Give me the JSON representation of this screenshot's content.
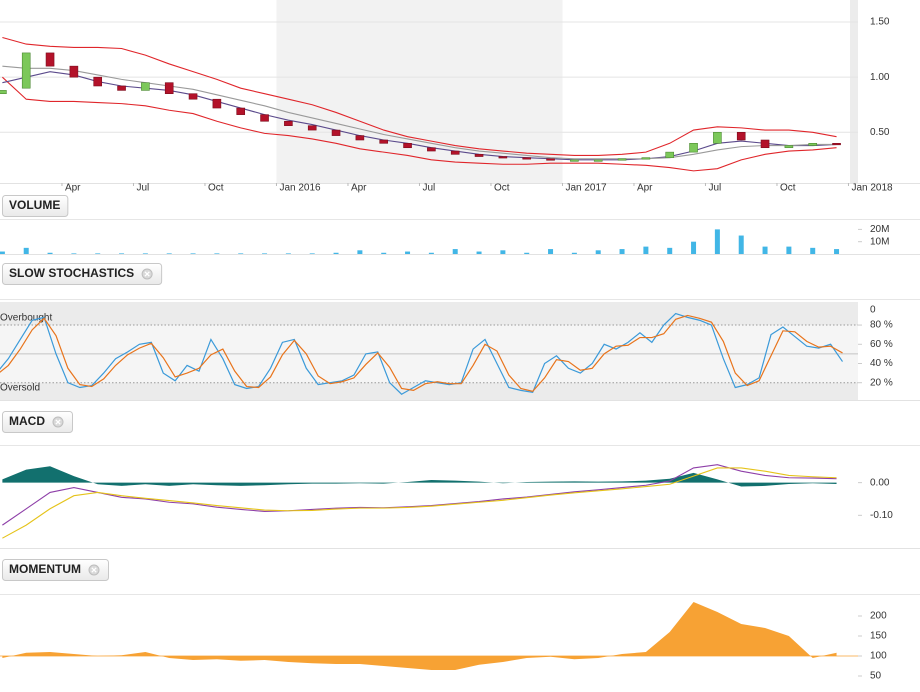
{
  "chart_data": [
    {
      "type": "candlestick",
      "xlim": [
        0.4,
        36.4
      ],
      "x": [
        0.5,
        1.5,
        2.5,
        3.5,
        4.5,
        5.5,
        6.5,
        7.5,
        8.5,
        9.5,
        10.5,
        11.5,
        12.5,
        13.5,
        14.5,
        15.5,
        16.5,
        17.5,
        18.5,
        19.5,
        20.5,
        21.5,
        22.5,
        23.5,
        24.5,
        25.5,
        26.5,
        27.5,
        28.5,
        29.5,
        30.5,
        31.5,
        32.5,
        33.5,
        34.5,
        35.5
      ],
      "xticks": [
        {
          "value": 3,
          "label": "Apr"
        },
        {
          "value": 6,
          "label": "Jul"
        },
        {
          "value": 9,
          "label": "Oct"
        },
        {
          "value": 12,
          "label": "Jan 2016"
        },
        {
          "value": 15,
          "label": "Apr"
        },
        {
          "value": 18,
          "label": "Jul"
        },
        {
          "value": 21,
          "label": "Oct"
        },
        {
          "value": 24,
          "label": "Jan 2017"
        },
        {
          "value": 27,
          "label": "Apr"
        },
        {
          "value": 30,
          "label": "Jul"
        },
        {
          "value": 33,
          "label": "Oct"
        },
        {
          "value": 36,
          "label": "Jan 2018"
        }
      ],
      "ylim": [
        0.04,
        1.7
      ],
      "yticks": [
        {
          "value": 0.5,
          "label": "0.50"
        },
        {
          "value": 1,
          "label": "1.00"
        },
        {
          "value": 1.5,
          "label": "1.50"
        }
      ],
      "grid": true,
      "open": [
        0.85,
        0.9,
        1.22,
        1.1,
        1.0,
        0.92,
        0.88,
        0.95,
        0.85,
        0.8,
        0.72,
        0.66,
        0.6,
        0.56,
        0.52,
        0.47,
        0.43,
        0.4,
        0.36,
        0.33,
        0.3,
        0.28,
        0.27,
        0.26,
        0.25,
        0.25,
        0.25,
        0.26,
        0.27,
        0.32,
        0.4,
        0.5,
        0.43,
        0.36,
        0.38,
        0.4
      ],
      "close": [
        0.88,
        1.22,
        1.1,
        1.0,
        0.92,
        0.88,
        0.95,
        0.85,
        0.8,
        0.72,
        0.66,
        0.6,
        0.56,
        0.52,
        0.47,
        0.43,
        0.4,
        0.36,
        0.33,
        0.3,
        0.28,
        0.27,
        0.26,
        0.25,
        0.25,
        0.25,
        0.26,
        0.27,
        0.32,
        0.4,
        0.5,
        0.43,
        0.36,
        0.38,
        0.4,
        0.39
      ],
      "up_color": "#7cc85a",
      "down_color": "#b3122a",
      "series": [
        {
          "color": "#e0262b",
          "values": [
            1.36,
            1.3,
            1.28,
            1.27,
            1.27,
            1.26,
            1.2,
            1.12,
            1.05,
            0.98,
            0.9,
            0.85,
            0.8,
            0.75,
            0.68,
            0.6,
            0.52,
            0.46,
            0.42,
            0.38,
            0.35,
            0.33,
            0.31,
            0.3,
            0.29,
            0.29,
            0.3,
            0.32,
            0.4,
            0.52,
            0.55,
            0.54,
            0.52,
            0.52,
            0.5,
            0.46
          ]
        },
        {
          "color": "#e0262b",
          "values": [
            1.0,
            0.8,
            0.78,
            0.78,
            0.77,
            0.76,
            0.74,
            0.7,
            0.67,
            0.6,
            0.54,
            0.49,
            0.47,
            0.44,
            0.4,
            0.35,
            0.32,
            0.29,
            0.25,
            0.23,
            0.22,
            0.21,
            0.21,
            0.22,
            0.22,
            0.22,
            0.21,
            0.2,
            0.18,
            0.15,
            0.17,
            0.25,
            0.3,
            0.33,
            0.34,
            0.36
          ]
        },
        {
          "color": "#5b4a8c",
          "values": [
            0.95,
            1.0,
            1.05,
            1.02,
            0.96,
            0.92,
            0.9,
            0.88,
            0.84,
            0.78,
            0.72,
            0.66,
            0.61,
            0.57,
            0.52,
            0.47,
            0.43,
            0.4,
            0.36,
            0.33,
            0.3,
            0.28,
            0.27,
            0.26,
            0.25,
            0.25,
            0.25,
            0.26,
            0.28,
            0.33,
            0.4,
            0.42,
            0.4,
            0.38,
            0.38,
            0.39
          ]
        },
        {
          "color": "#9a9a9a",
          "values": [
            1.1,
            1.08,
            1.08,
            1.06,
            1.02,
            0.98,
            0.95,
            0.92,
            0.89,
            0.84,
            0.79,
            0.74,
            0.68,
            0.63,
            0.58,
            0.53,
            0.48,
            0.44,
            0.4,
            0.36,
            0.33,
            0.31,
            0.29,
            0.27,
            0.26,
            0.26,
            0.26,
            0.26,
            0.27,
            0.3,
            0.34,
            0.37,
            0.38,
            0.38,
            0.39,
            0.39
          ]
        }
      ]
    },
    {
      "type": "bar",
      "title": "VOLUME",
      "xlim": [
        0.4,
        36.4
      ],
      "x": [
        0.5,
        1.5,
        2.5,
        3.5,
        4.5,
        5.5,
        6.5,
        7.5,
        8.5,
        9.5,
        10.5,
        11.5,
        12.5,
        13.5,
        14.5,
        15.5,
        16.5,
        17.5,
        18.5,
        19.5,
        20.5,
        21.5,
        22.5,
        23.5,
        24.5,
        25.5,
        26.5,
        27.5,
        28.5,
        29.5,
        30.5,
        31.5,
        32.5,
        33.5,
        34.5,
        35.5
      ],
      "ylim": [
        0,
        26000000
      ],
      "yticks": [
        {
          "value": 10000000,
          "label": "10M"
        },
        {
          "value": 20000000,
          "label": "20M"
        }
      ],
      "color": "#41b6e6",
      "values": [
        2000000,
        5000000,
        1000000,
        500000,
        500000,
        500000,
        500000,
        500000,
        500000,
        500000,
        500000,
        500000,
        500000,
        500000,
        1000000,
        3000000,
        1000000,
        2000000,
        1000000,
        4000000,
        2000000,
        3000000,
        1000000,
        4000000,
        1000000,
        3000000,
        4000000,
        6000000,
        5000000,
        10000000,
        20000000,
        15000000,
        6000000,
        6000000,
        5000000,
        4000000
      ]
    },
    {
      "type": "line",
      "title": "SLOW STOCHASTICS",
      "xlim": [
        0.4,
        36.4
      ],
      "x": [
        0.25,
        0.75,
        1.25,
        1.75,
        2.25,
        2.75,
        3.25,
        3.75,
        4.25,
        4.75,
        5.25,
        5.75,
        6.25,
        6.75,
        7.25,
        7.75,
        8.25,
        8.75,
        9.25,
        9.75,
        10.25,
        10.75,
        11.25,
        11.75,
        12.25,
        12.75,
        13.25,
        13.75,
        14.25,
        14.75,
        15.25,
        15.75,
        16.25,
        16.75,
        17.25,
        17.75,
        18.25,
        18.75,
        19.25,
        19.75,
        20.25,
        20.75,
        21.25,
        21.75,
        22.25,
        22.75,
        23.25,
        23.75,
        24.25,
        24.75,
        25.25,
        25.75,
        26.25,
        26.75,
        27.25,
        27.75,
        28.25,
        28.75,
        29.25,
        29.75,
        30.25,
        30.75,
        31.25,
        31.75,
        32.25,
        32.75,
        33.25,
        33.75,
        34.25,
        34.75,
        35.25,
        35.75
      ],
      "ylim": [
        2,
        104
      ],
      "yticks": [
        {
          "value": 20,
          "label": "20 %"
        },
        {
          "value": 40,
          "label": "40 %"
        },
        {
          "value": 60,
          "label": "60 %"
        },
        {
          "value": 80,
          "label": "80 %"
        }
      ],
      "top_label": "0",
      "midline": 50,
      "levels": [
        {
          "value": 80,
          "label": "Overbought"
        },
        {
          "value": 20,
          "label": "Oversold"
        }
      ],
      "series": [
        {
          "color": "#3b9ad9",
          "values": [
            30,
            45,
            65,
            85,
            88,
            50,
            20,
            15,
            17,
            30,
            45,
            52,
            60,
            62,
            30,
            22,
            38,
            32,
            65,
            45,
            18,
            14,
            16,
            35,
            62,
            65,
            35,
            18,
            20,
            22,
            28,
            50,
            52,
            20,
            8,
            15,
            22,
            20,
            18,
            20,
            55,
            65,
            40,
            15,
            12,
            10,
            40,
            48,
            35,
            30,
            40,
            60,
            55,
            62,
            72,
            62,
            80,
            92,
            88,
            85,
            80,
            45,
            15,
            18,
            25,
            70,
            78,
            68,
            58,
            56,
            60,
            42
          ]
        },
        {
          "color": "#e8741c",
          "values": [
            28,
            38,
            55,
            75,
            87,
            69,
            35,
            18,
            16,
            24,
            38,
            49,
            56,
            61,
            46,
            26,
            30,
            35,
            49,
            55,
            32,
            16,
            15,
            26,
            49,
            64,
            50,
            27,
            19,
            21,
            25,
            39,
            51,
            36,
            14,
            12,
            19,
            21,
            19,
            19,
            38,
            60,
            53,
            28,
            14,
            11,
            25,
            44,
            42,
            33,
            35,
            50,
            58,
            59,
            67,
            67,
            71,
            86,
            90,
            87,
            83,
            63,
            30,
            17,
            22,
            48,
            74,
            73,
            63,
            57,
            58,
            51
          ]
        }
      ]
    },
    {
      "type": "macd",
      "title": "MACD",
      "xlim": [
        0.4,
        36.4
      ],
      "x": [
        0.5,
        1.5,
        2.5,
        3.5,
        4.5,
        5.5,
        6.5,
        7.5,
        8.5,
        9.5,
        10.5,
        11.5,
        12.5,
        13.5,
        14.5,
        15.5,
        16.5,
        17.5,
        18.5,
        19.5,
        20.5,
        21.5,
        22.5,
        23.5,
        24.5,
        25.5,
        26.5,
        27.5,
        28.5,
        29.5,
        30.5,
        31.5,
        32.5,
        33.5,
        34.5,
        35.5
      ],
      "ylim": [
        -0.2,
        0.106
      ],
      "yticks": [
        {
          "value": -0.1,
          "label": "-0.10"
        },
        {
          "value": 0,
          "label": "0.00"
        }
      ],
      "histogram": {
        "color": "#12706e",
        "values": [
          0.01,
          0.04,
          0.05,
          0.02,
          -0.005,
          -0.01,
          -0.005,
          -0.01,
          -0.005,
          -0.008,
          -0.01,
          -0.008,
          -0.005,
          -0.003,
          -0.003,
          -0.002,
          -0.003,
          0.002,
          0.008,
          0.006,
          0.003,
          -0.002,
          0.002,
          0.003,
          0.004,
          0.003,
          0.004,
          0.006,
          0.012,
          0.03,
          0.01,
          -0.012,
          -0.01,
          -0.004,
          -0.002,
          -0.004
        ]
      },
      "series": [
        {
          "color": "#8e3fa8",
          "values": [
            -0.13,
            -0.08,
            -0.03,
            -0.015,
            -0.03,
            -0.045,
            -0.05,
            -0.06,
            -0.065,
            -0.075,
            -0.082,
            -0.088,
            -0.086,
            -0.082,
            -0.078,
            -0.076,
            -0.077,
            -0.074,
            -0.07,
            -0.064,
            -0.058,
            -0.05,
            -0.044,
            -0.036,
            -0.028,
            -0.022,
            -0.015,
            -0.008,
            0.005,
            0.045,
            0.055,
            0.035,
            0.022,
            0.015,
            0.014,
            0.012
          ]
        },
        {
          "color": "#e5c31a",
          "values": [
            -0.17,
            -0.13,
            -0.08,
            -0.04,
            -0.03,
            -0.04,
            -0.048,
            -0.055,
            -0.062,
            -0.07,
            -0.077,
            -0.084,
            -0.086,
            -0.085,
            -0.081,
            -0.078,
            -0.078,
            -0.076,
            -0.072,
            -0.066,
            -0.06,
            -0.054,
            -0.046,
            -0.038,
            -0.031,
            -0.025,
            -0.019,
            -0.012,
            -0.005,
            0.02,
            0.045,
            0.045,
            0.035,
            0.022,
            0.018,
            0.015
          ]
        }
      ]
    },
    {
      "type": "area",
      "title": "MOMENTUM",
      "xlim": [
        0.4,
        36.4
      ],
      "x": [
        0.5,
        1.5,
        2.5,
        3.5,
        4.5,
        5.5,
        6.5,
        7.5,
        8.5,
        9.5,
        10.5,
        11.5,
        12.5,
        13.5,
        14.5,
        15.5,
        16.5,
        17.5,
        18.5,
        19.5,
        20.5,
        21.5,
        22.5,
        23.5,
        24.5,
        25.5,
        26.5,
        27.5,
        28.5,
        29.5,
        30.5,
        31.5,
        32.5,
        33.5,
        34.5,
        35.5
      ],
      "ylim": [
        10,
        247.5
      ],
      "yticks": [
        50,
        100,
        150,
        200
      ],
      "baseline": 100,
      "color": "#f7a234",
      "values": [
        95,
        108,
        110,
        105,
        100,
        102,
        110,
        95,
        90,
        92,
        88,
        90,
        85,
        82,
        80,
        80,
        75,
        70,
        65,
        65,
        78,
        85,
        95,
        98,
        92,
        95,
        105,
        110,
        160,
        235,
        210,
        180,
        170,
        150,
        95,
        108
      ]
    }
  ]
}
